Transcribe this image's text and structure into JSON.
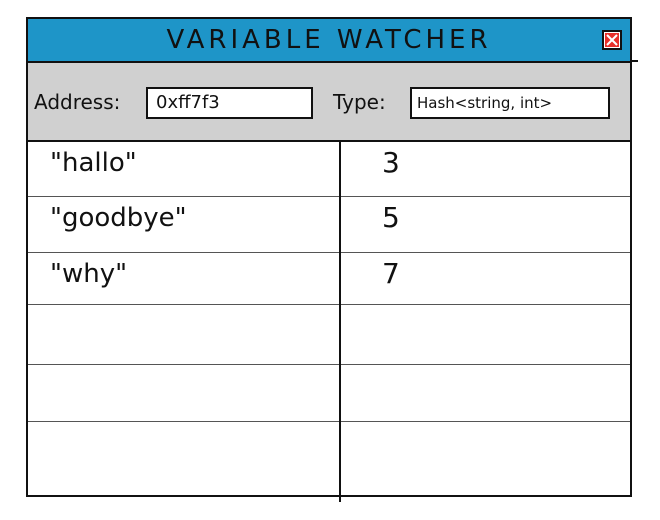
{
  "window": {
    "title": "VARIABLE WATCHER",
    "accent_color": "#1e95c8",
    "close_icon_color": "#e8302a"
  },
  "toolbar": {
    "address_label": "Address:",
    "address_value": "0xff7f3",
    "type_label": "Type:",
    "type_value": "Hash<string, int>"
  },
  "watch_table": {
    "rows": [
      {
        "key": "\"hallo\"",
        "value": "3"
      },
      {
        "key": "\"goodbye\"",
        "value": "5"
      },
      {
        "key": "\"why\"",
        "value": "7"
      },
      {
        "key": "",
        "value": ""
      },
      {
        "key": "",
        "value": ""
      },
      {
        "key": "",
        "value": ""
      }
    ]
  }
}
